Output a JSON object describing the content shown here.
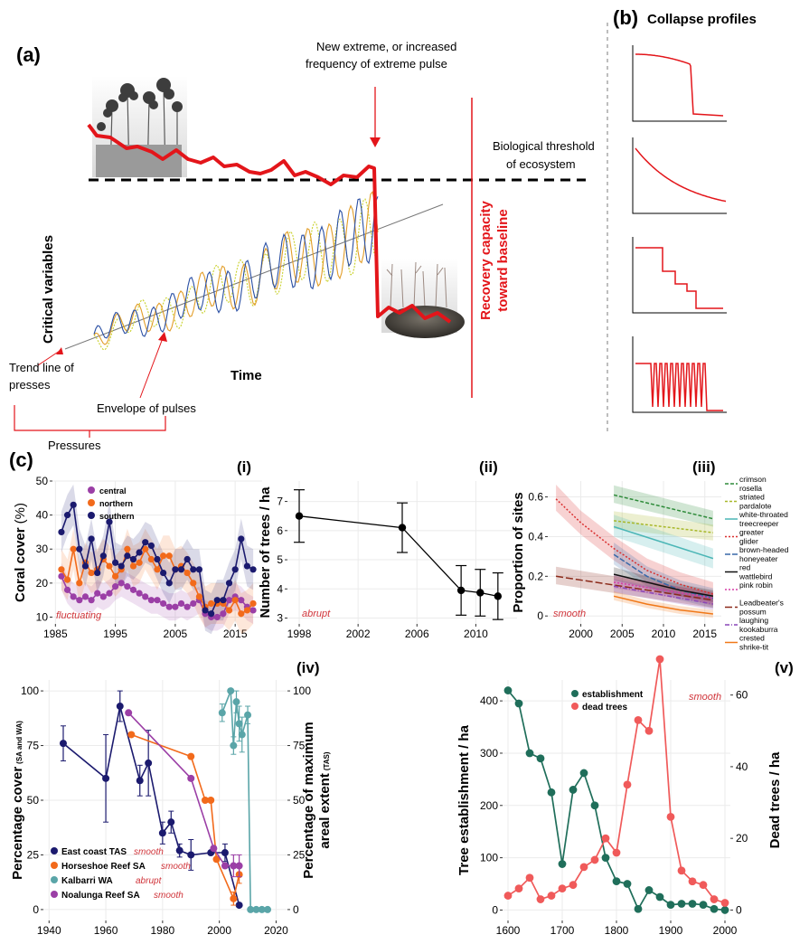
{
  "panel_a": {
    "label": "(a)",
    "extreme_note_1": "New extreme, or increased",
    "extreme_note_2": "frequency of extreme pulse",
    "threshold_1": "Biological threshold",
    "threshold_2": "of ecosystem",
    "y_label": "Critical variables",
    "x_label": "Time",
    "recovery_1": "Recovery capacity",
    "recovery_2": "toward baseline",
    "trend_1": "Trend line of",
    "trend_2": "presses",
    "envelope": "Envelope of pulses",
    "pressures": "Pressures"
  },
  "panel_b": {
    "label": "(b)",
    "title": "Collapse profiles",
    "profiles": [
      "ABRUPT",
      "SMOOTH",
      "STEPPED",
      "FLUCTUATING"
    ]
  },
  "panel_c": {
    "label": "(c)"
  },
  "chart_data": [
    {
      "id": "i",
      "type": "line",
      "label": "(i)",
      "ylabel_main": "Coral cover",
      "ylabel_unit": "(%)",
      "ylim": [
        8,
        50
      ],
      "xlim": [
        1984.5,
        2019.5
      ],
      "x_ticks": [
        1985,
        1995,
        2005,
        2015
      ],
      "y_ticks": [
        10,
        20,
        30,
        40,
        50
      ],
      "profile": "fluctuating",
      "series": [
        {
          "name": "central",
          "color": "#9b3fa6",
          "x": [
            1986,
            1987,
            1988,
            1989,
            1990,
            1991,
            1992,
            1993,
            1994,
            1995,
            1996,
            1997,
            1998,
            1999,
            2000,
            2001,
            2002,
            2003,
            2004,
            2005,
            2006,
            2007,
            2008,
            2009,
            2010,
            2011,
            2012,
            2013,
            2014,
            2015,
            2016,
            2017,
            2018
          ],
          "y": [
            22,
            18,
            16,
            15,
            16,
            15,
            17,
            16,
            17,
            19,
            20,
            19,
            18,
            17,
            16,
            15,
            15,
            14,
            13,
            13,
            14,
            13,
            14,
            15,
            11,
            10,
            10,
            11,
            15,
            16,
            15,
            13,
            12
          ]
        },
        {
          "name": "northern",
          "color": "#f26a1b",
          "x": [
            1986,
            1987,
            1988,
            1989,
            1990,
            1991,
            1992,
            1993,
            1994,
            1995,
            1996,
            1997,
            1998,
            1999,
            2000,
            2001,
            2002,
            2003,
            2004,
            2005,
            2006,
            2007,
            2008,
            2009,
            2010,
            2011,
            2012,
            2013,
            2014,
            2015,
            2016,
            2017,
            2018
          ],
          "y": [
            24,
            21,
            30,
            20,
            26,
            23,
            24,
            27,
            25,
            22,
            24,
            30,
            25,
            26,
            30,
            27,
            24,
            28,
            28,
            24,
            25,
            23,
            20,
            16,
            13,
            14,
            14,
            14,
            12,
            15,
            11,
            12,
            14
          ]
        },
        {
          "name": "southern",
          "color": "#1b1a6e",
          "x": [
            1986,
            1987,
            1988,
            1989,
            1990,
            1991,
            1992,
            1993,
            1994,
            1995,
            1996,
            1997,
            1998,
            1999,
            2000,
            2001,
            2002,
            2003,
            2004,
            2005,
            2006,
            2007,
            2008,
            2009,
            2010,
            2011,
            2012,
            2013,
            2014,
            2015,
            2016,
            2017,
            2018
          ],
          "y": [
            35,
            40,
            43,
            30,
            25,
            33,
            23,
            28,
            38,
            26,
            25,
            28,
            27,
            29,
            32,
            31,
            27,
            23,
            20,
            24,
            24,
            27,
            24,
            24,
            12,
            11,
            15,
            15,
            20,
            24,
            33,
            25,
            24
          ]
        }
      ]
    },
    {
      "id": "ii",
      "type": "line",
      "label": "(ii)",
      "ylabel": "Number of trees / ha",
      "ylim": [
        2.8,
        7.7
      ],
      "xlim": [
        1997.2,
        2012.8
      ],
      "x_ticks": [
        1998,
        2002,
        2006,
        2010
      ],
      "y_ticks": [
        3,
        4,
        5,
        6,
        7
      ],
      "profile": "abrupt",
      "series": [
        {
          "name": "",
          "color": "#000000",
          "x": [
            1998,
            2005,
            2009,
            2010.3,
            2011.5
          ],
          "y": [
            6.5,
            6.1,
            3.95,
            3.87,
            3.75
          ],
          "err": [
            0.9,
            0.85,
            0.85,
            0.8,
            0.8
          ]
        }
      ]
    },
    {
      "id": "iii",
      "type": "line",
      "label": "(iii)",
      "ylabel": "Proportion of sites",
      "ylim": [
        -0.04,
        0.68
      ],
      "xlim": [
        1996,
        2017
      ],
      "x_ticks": [
        2000,
        2005,
        2010,
        2015
      ],
      "y_ticks": [
        0,
        0.2,
        0.4,
        0.6
      ],
      "y_tick_labels": [
        "0",
        "0.2",
        "0.4",
        "0.6"
      ],
      "profile": "smooth",
      "series": [
        {
          "name": "crimson rosella",
          "color": "#2e8b3a",
          "x": [
            2004,
            2016
          ],
          "y": [
            0.61,
            0.49
          ]
        },
        {
          "name": "striated pardalote",
          "color": "#a8b82a",
          "x": [
            2004,
            2016
          ],
          "y": [
            0.48,
            0.42
          ]
        },
        {
          "name": "white-throated treecreeper",
          "color": "#4bb6b6",
          "x": [
            2004,
            2016
          ],
          "y": [
            0.45,
            0.29
          ]
        },
        {
          "name": "greater glider",
          "color": "#d93030",
          "x": [
            1997,
            2000,
            2004,
            2008,
            2012,
            2016
          ],
          "y": [
            0.59,
            0.47,
            0.34,
            0.23,
            0.16,
            0.11
          ]
        },
        {
          "name": "brown-headed honeyeater",
          "color": "#3868a8",
          "x": [
            2004,
            2008,
            2012,
            2016
          ],
          "y": [
            0.31,
            0.2,
            0.13,
            0.09
          ]
        },
        {
          "name": "red wattlebird",
          "color": "#111111",
          "x": [
            2004,
            2008,
            2012,
            2016
          ],
          "y": [
            0.21,
            0.17,
            0.13,
            0.1
          ]
        },
        {
          "name": "pink robin",
          "color": "#d63fa8",
          "x": [
            2004,
            2016
          ],
          "y": [
            0.17,
            0.09
          ]
        },
        {
          "name": "Leadbeater's possum",
          "color": "#8b2a1a",
          "x": [
            1997,
            2016
          ],
          "y": [
            0.2,
            0.08
          ]
        },
        {
          "name": "laughing kookaburra",
          "color": "#8a46b8",
          "x": [
            2004,
            2016
          ],
          "y": [
            0.15,
            0.06
          ]
        },
        {
          "name": "crested shrike-tit",
          "color": "#f07818",
          "x": [
            2004,
            2008,
            2012,
            2016
          ],
          "y": [
            0.1,
            0.06,
            0.03,
            0.01
          ]
        }
      ]
    },
    {
      "id": "iv",
      "type": "line",
      "label": "(iv)",
      "ylabel_main": "Percentage cover",
      "ylabel_small": "(SA and WA)",
      "ylabel_right_1": "Percentage of maximum",
      "ylabel_right_2": "areal extent",
      "ylabel_right_small": "(TAS)",
      "ylim": [
        -5,
        105
      ],
      "xlim": [
        1938,
        2024
      ],
      "x_ticks": [
        1940,
        1960,
        1980,
        2000,
        2020
      ],
      "y_ticks": [
        0,
        25,
        50,
        75,
        100
      ],
      "y_right_ticks": [
        0,
        25,
        50,
        75,
        100
      ],
      "series": [
        {
          "name": "East coast TAS",
          "profile": "smooth",
          "color": "#1b1a6e",
          "x": [
            1945,
            1960,
            1965,
            1972,
            1975,
            1980,
            1983,
            1986,
            1990,
            1997,
            2002,
            2007
          ],
          "y": [
            76,
            60,
            93,
            59,
            67,
            35,
            40,
            27,
            25,
            26,
            26,
            2
          ]
        },
        {
          "name": "Horseshoe Reef SA",
          "profile": "smooth",
          "color": "#f26a1b",
          "x": [
            1969,
            1990,
            1995,
            1997,
            1999,
            2005,
            2007
          ],
          "y": [
            80,
            70,
            50,
            50,
            23,
            5,
            16
          ]
        },
        {
          "name": "Kalbarri WA",
          "profile": "abrupt",
          "color": "#5aa5a8",
          "x": [
            2001,
            2004,
            2005,
            2006,
            2007,
            2008,
            2010,
            2011,
            2013,
            2015,
            2017
          ],
          "y": [
            90,
            100,
            75,
            95,
            85,
            80,
            89,
            0,
            0,
            0,
            0
          ]
        },
        {
          "name": "Noalunga Reef SA",
          "profile": "smooth",
          "color": "#9b3fa6",
          "x": [
            1968,
            1990,
            1998,
            2002,
            2005,
            2007
          ],
          "y": [
            90,
            60,
            28,
            20,
            20,
            20
          ]
        }
      ]
    },
    {
      "id": "v",
      "type": "line",
      "label": "(v)",
      "ylabel_left": "Tree establishment / ha",
      "ylabel_right": "Dead trees / ha",
      "ylim_left": [
        -20,
        440
      ],
      "ylim_right": [
        -2.92,
        64.2
      ],
      "xlim": [
        1590,
        2010
      ],
      "x_ticks": [
        1600,
        1700,
        1800,
        1900,
        2000
      ],
      "y_left_ticks": [
        0,
        100,
        200,
        300,
        400
      ],
      "y_right_ticks": [
        0,
        20,
        40,
        60
      ],
      "profile": "smooth",
      "series": [
        {
          "name": "establishment",
          "color": "#1f6e5a",
          "axis": "left",
          "x": [
            1600,
            1620,
            1640,
            1660,
            1680,
            1700,
            1720,
            1740,
            1760,
            1780,
            1800,
            1820,
            1840,
            1860,
            1880,
            1900,
            1920,
            1940,
            1960,
            1980,
            2000
          ],
          "y": [
            420,
            395,
            300,
            290,
            225,
            88,
            230,
            262,
            200,
            100,
            55,
            50,
            2,
            38,
            25,
            10,
            12,
            12,
            10,
            2,
            0
          ]
        },
        {
          "name": "dead trees",
          "color": "#f05a5a",
          "axis": "right",
          "x": [
            1600,
            1620,
            1640,
            1660,
            1680,
            1700,
            1720,
            1740,
            1760,
            1780,
            1800,
            1820,
            1840,
            1860,
            1880,
            1900,
            1920,
            1940,
            1960,
            1980,
            2000
          ],
          "y": [
            4,
            6,
            9,
            3,
            4,
            6,
            7,
            12,
            14,
            20,
            16,
            35,
            53,
            50,
            70,
            26,
            11,
            8,
            7,
            3,
            2
          ]
        }
      ]
    }
  ]
}
